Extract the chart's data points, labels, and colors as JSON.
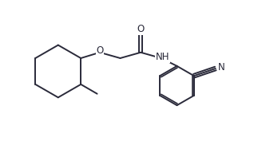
{
  "bg_color": "#ffffff",
  "line_color": "#2a2a3a",
  "line_width": 1.4,
  "figsize": [
    3.23,
    1.92
  ],
  "dpi": 100,
  "xlim": [
    0.0,
    9.5
  ],
  "ylim": [
    0.0,
    5.8
  ]
}
